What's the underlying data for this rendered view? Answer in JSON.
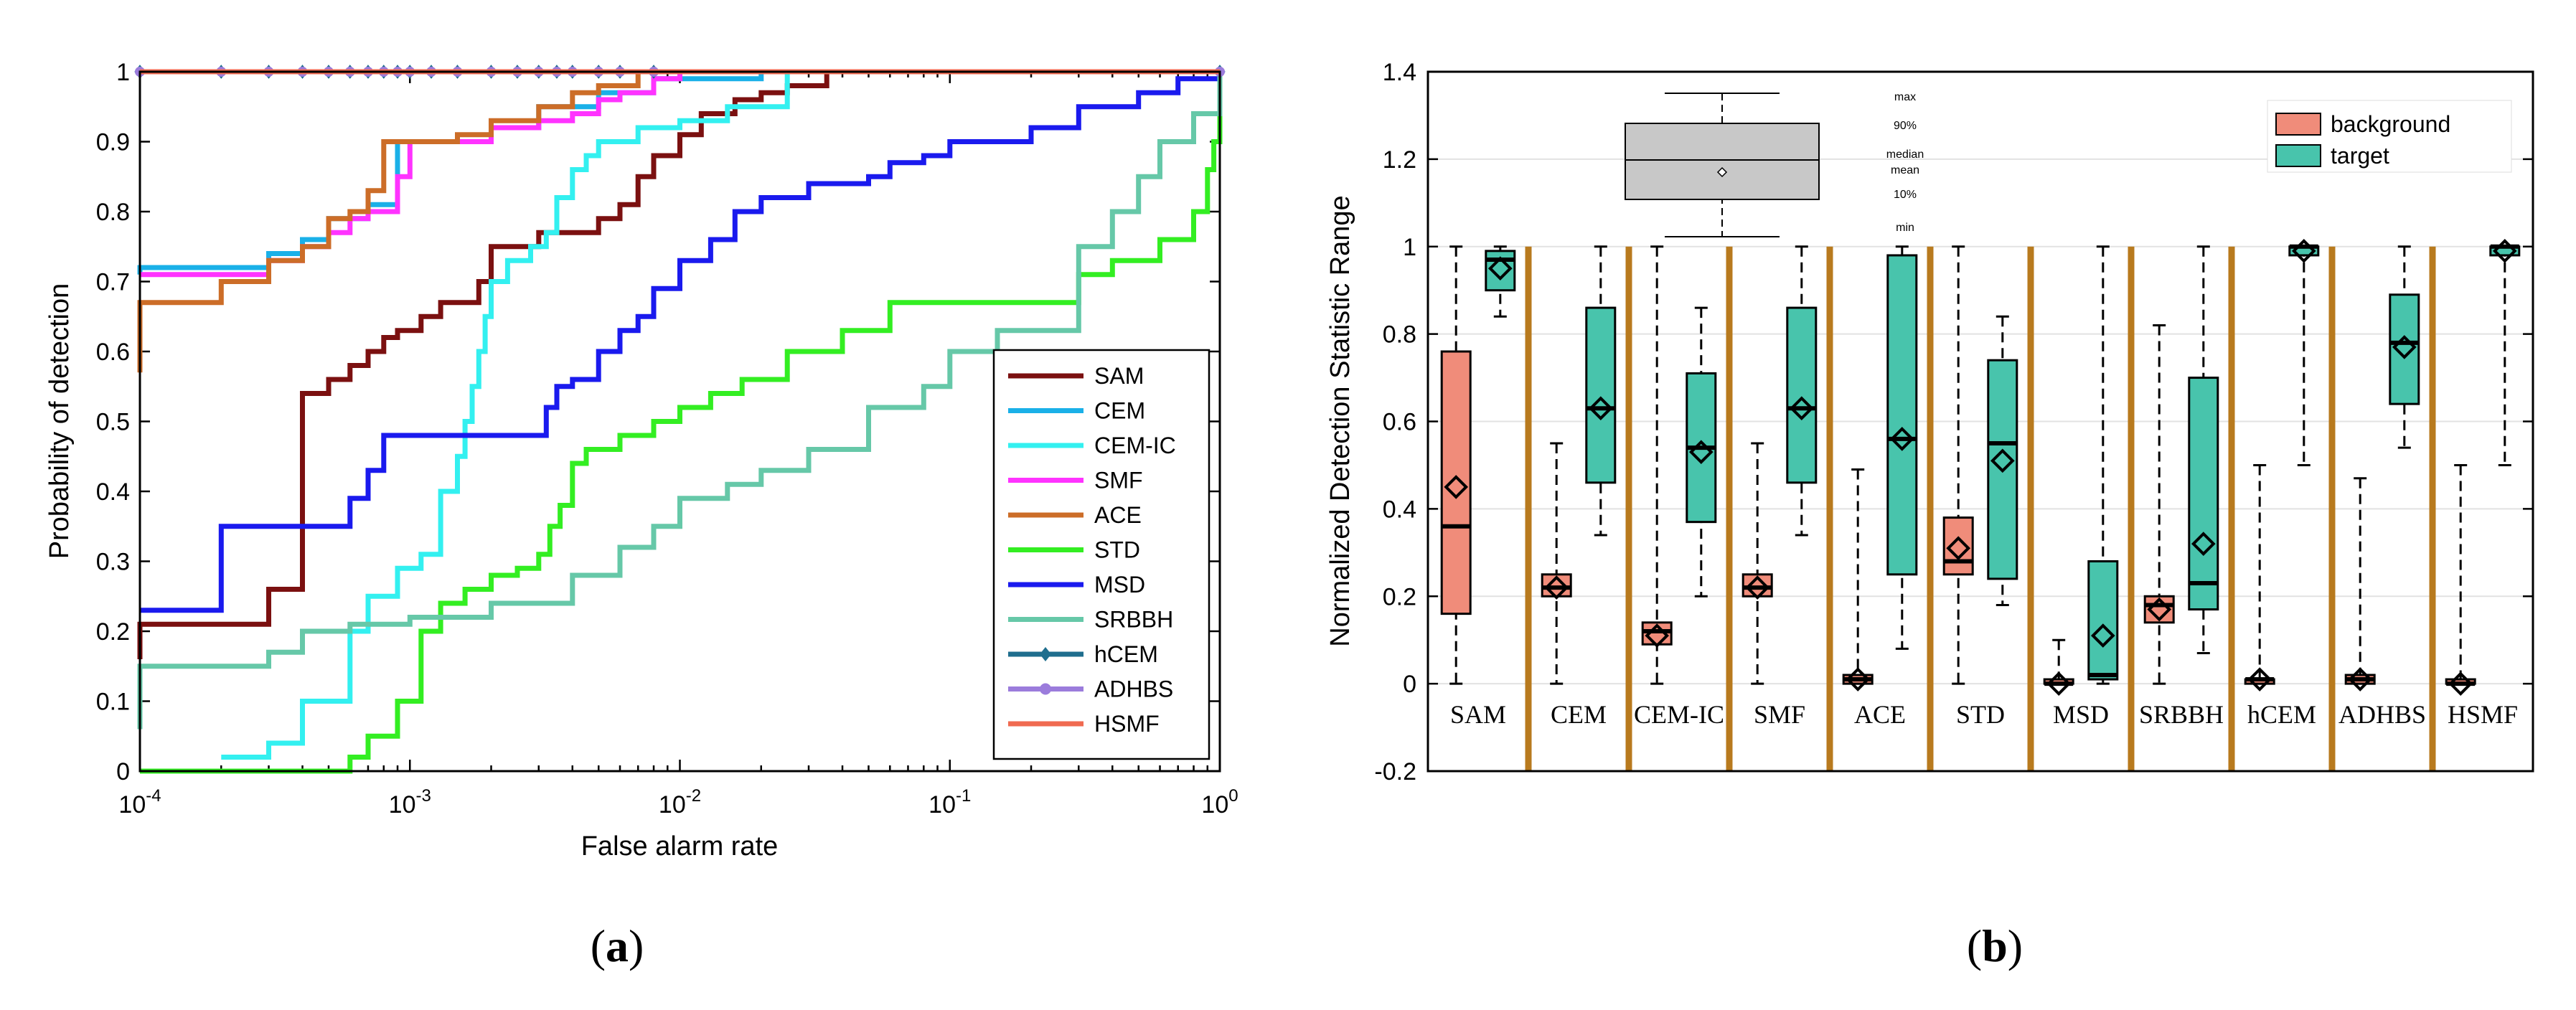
{
  "chart_data": [
    {
      "type": "line",
      "caption": "a",
      "xscale": "log",
      "xlim": [
        0.0001,
        1
      ],
      "ylim": [
        0,
        1
      ],
      "xlabel": "False alarm rate",
      "ylabel": "Probability of detection",
      "x_tick_labels": [
        {
          "base": "10",
          "exp": "-4",
          "value": 0.0001
        },
        {
          "base": "10",
          "exp": "-3",
          "value": 0.001
        },
        {
          "base": "10",
          "exp": "-2",
          "value": 0.01
        },
        {
          "base": "10",
          "exp": "-1",
          "value": 0.1
        },
        {
          "base": "10",
          "exp": "0",
          "value": 1
        }
      ],
      "y_tick_labels": [
        "0",
        "0.1",
        "0.2",
        "0.3",
        "0.4",
        "0.5",
        "0.6",
        "0.7",
        "0.8",
        "0.9",
        "1"
      ],
      "legend_position": "bottom-right",
      "series": [
        {
          "name": "SAM",
          "color": "#7b1010",
          "points": [
            [
              0.0001,
              0.16
            ],
            [
              0.0001,
              0.21
            ],
            [
              0.0003,
              0.26
            ],
            [
              0.0004,
              0.27
            ],
            [
              0.0004,
              0.54
            ],
            [
              0.0005,
              0.56
            ],
            [
              0.0006,
              0.58
            ],
            [
              0.0007,
              0.6
            ],
            [
              0.0008,
              0.62
            ],
            [
              0.0009,
              0.63
            ],
            [
              0.0011,
              0.65
            ],
            [
              0.0013,
              0.67
            ],
            [
              0.0018,
              0.7
            ],
            [
              0.002,
              0.75
            ],
            [
              0.003,
              0.77
            ],
            [
              0.005,
              0.79
            ],
            [
              0.006,
              0.81
            ],
            [
              0.007,
              0.85
            ],
            [
              0.008,
              0.88
            ],
            [
              0.01,
              0.91
            ],
            [
              0.012,
              0.94
            ],
            [
              0.016,
              0.96
            ],
            [
              0.02,
              0.97
            ],
            [
              0.025,
              0.98
            ],
            [
              0.035,
              1.0
            ],
            [
              1,
              1.0
            ]
          ]
        },
        {
          "name": "CEM",
          "color": "#1ab0e8",
          "points": [
            [
              0.0001,
              0.71
            ],
            [
              0.0001,
              0.72
            ],
            [
              0.0003,
              0.74
            ],
            [
              0.0004,
              0.76
            ],
            [
              0.0005,
              0.79
            ],
            [
              0.0007,
              0.81
            ],
            [
              0.0009,
              0.9
            ],
            [
              0.002,
              0.92
            ],
            [
              0.003,
              0.95
            ],
            [
              0.005,
              0.97
            ],
            [
              0.008,
              0.99
            ],
            [
              0.02,
              1.0
            ],
            [
              1,
              1.0
            ]
          ]
        },
        {
          "name": "CEM-IC",
          "color": "#33f0f0",
          "points": [
            [
              0.0002,
              0.02
            ],
            [
              0.0003,
              0.04
            ],
            [
              0.0004,
              0.1
            ],
            [
              0.0005,
              0.1
            ],
            [
              0.0006,
              0.2
            ],
            [
              0.0007,
              0.25
            ],
            [
              0.0009,
              0.29
            ],
            [
              0.0011,
              0.31
            ],
            [
              0.0013,
              0.4
            ],
            [
              0.0015,
              0.45
            ],
            [
              0.0016,
              0.5
            ],
            [
              0.0017,
              0.55
            ],
            [
              0.0018,
              0.6
            ],
            [
              0.0019,
              0.65
            ],
            [
              0.002,
              0.7
            ],
            [
              0.0023,
              0.73
            ],
            [
              0.0028,
              0.75
            ],
            [
              0.0032,
              0.77
            ],
            [
              0.0035,
              0.82
            ],
            [
              0.004,
              0.86
            ],
            [
              0.0045,
              0.88
            ],
            [
              0.005,
              0.9
            ],
            [
              0.007,
              0.92
            ],
            [
              0.01,
              0.93
            ],
            [
              0.015,
              0.95
            ],
            [
              0.025,
              0.97
            ],
            [
              0.025,
              1.0
            ],
            [
              1,
              1.0
            ]
          ]
        },
        {
          "name": "SMF",
          "color": "#ff33ff",
          "points": [
            [
              0.0001,
              0.71
            ],
            [
              0.0003,
              0.73
            ],
            [
              0.0004,
              0.75
            ],
            [
              0.0005,
              0.77
            ],
            [
              0.0006,
              0.79
            ],
            [
              0.0007,
              0.8
            ],
            [
              0.0009,
              0.85
            ],
            [
              0.001,
              0.9
            ],
            [
              0.002,
              0.92
            ],
            [
              0.003,
              0.93
            ],
            [
              0.004,
              0.94
            ],
            [
              0.005,
              0.96
            ],
            [
              0.006,
              0.97
            ],
            [
              0.008,
              0.99
            ],
            [
              0.01,
              1.0
            ],
            [
              1,
              1.0
            ]
          ]
        },
        {
          "name": "ACE",
          "color": "#cc6d28",
          "points": [
            [
              0.0001,
              0.57
            ],
            [
              0.0001,
              0.67
            ],
            [
              0.0002,
              0.7
            ],
            [
              0.0003,
              0.73
            ],
            [
              0.0004,
              0.75
            ],
            [
              0.0005,
              0.79
            ],
            [
              0.0006,
              0.8
            ],
            [
              0.0007,
              0.83
            ],
            [
              0.0008,
              0.9
            ],
            [
              0.0015,
              0.91
            ],
            [
              0.002,
              0.93
            ],
            [
              0.003,
              0.95
            ],
            [
              0.004,
              0.97
            ],
            [
              0.005,
              0.98
            ],
            [
              0.007,
              1.0
            ],
            [
              1,
              1.0
            ]
          ]
        },
        {
          "name": "STD",
          "color": "#33ee22",
          "points": [
            [
              0.0001,
              0.0
            ],
            [
              0.0005,
              0.0
            ],
            [
              0.0006,
              0.02
            ],
            [
              0.0007,
              0.05
            ],
            [
              0.0009,
              0.1
            ],
            [
              0.0011,
              0.2
            ],
            [
              0.0013,
              0.24
            ],
            [
              0.0016,
              0.26
            ],
            [
              0.002,
              0.28
            ],
            [
              0.0025,
              0.29
            ],
            [
              0.003,
              0.31
            ],
            [
              0.0033,
              0.35
            ],
            [
              0.0036,
              0.38
            ],
            [
              0.004,
              0.44
            ],
            [
              0.0045,
              0.46
            ],
            [
              0.006,
              0.48
            ],
            [
              0.008,
              0.5
            ],
            [
              0.01,
              0.52
            ],
            [
              0.013,
              0.54
            ],
            [
              0.017,
              0.56
            ],
            [
              0.025,
              0.6
            ],
            [
              0.04,
              0.63
            ],
            [
              0.06,
              0.67
            ],
            [
              0.3,
              0.71
            ],
            [
              0.4,
              0.73
            ],
            [
              0.6,
              0.76
            ],
            [
              0.8,
              0.8
            ],
            [
              0.9,
              0.86
            ],
            [
              0.95,
              0.9
            ],
            [
              1,
              1.0
            ]
          ]
        },
        {
          "name": "MSD",
          "color": "#1a1aee",
          "points": [
            [
              0.0001,
              0.23
            ],
            [
              0.0002,
              0.23
            ],
            [
              0.0002,
              0.35
            ],
            [
              0.0005,
              0.35
            ],
            [
              0.0006,
              0.39
            ],
            [
              0.0007,
              0.43
            ],
            [
              0.0008,
              0.48
            ],
            [
              0.003,
              0.48
            ],
            [
              0.0032,
              0.52
            ],
            [
              0.0035,
              0.55
            ],
            [
              0.004,
              0.56
            ],
            [
              0.005,
              0.6
            ],
            [
              0.006,
              0.63
            ],
            [
              0.007,
              0.65
            ],
            [
              0.008,
              0.69
            ],
            [
              0.01,
              0.73
            ],
            [
              0.013,
              0.76
            ],
            [
              0.016,
              0.8
            ],
            [
              0.02,
              0.82
            ],
            [
              0.03,
              0.84
            ],
            [
              0.05,
              0.85
            ],
            [
              0.06,
              0.87
            ],
            [
              0.08,
              0.88
            ],
            [
              0.1,
              0.9
            ],
            [
              0.2,
              0.92
            ],
            [
              0.3,
              0.95
            ],
            [
              0.5,
              0.97
            ],
            [
              0.7,
              0.99
            ],
            [
              1,
              1.0
            ]
          ]
        },
        {
          "name": "SRBBH",
          "color": "#66c8a8",
          "points": [
            [
              0.0001,
              0.06
            ],
            [
              0.0001,
              0.15
            ],
            [
              0.0003,
              0.17
            ],
            [
              0.0004,
              0.2
            ],
            [
              0.0006,
              0.21
            ],
            [
              0.001,
              0.22
            ],
            [
              0.002,
              0.24
            ],
            [
              0.004,
              0.28
            ],
            [
              0.006,
              0.32
            ],
            [
              0.008,
              0.35
            ],
            [
              0.01,
              0.39
            ],
            [
              0.015,
              0.41
            ],
            [
              0.02,
              0.43
            ],
            [
              0.03,
              0.46
            ],
            [
              0.05,
              0.52
            ],
            [
              0.08,
              0.55
            ],
            [
              0.1,
              0.6
            ],
            [
              0.15,
              0.63
            ],
            [
              0.2,
              0.63
            ],
            [
              0.3,
              0.75
            ],
            [
              0.4,
              0.8
            ],
            [
              0.5,
              0.85
            ],
            [
              0.6,
              0.9
            ],
            [
              0.8,
              0.94
            ],
            [
              1,
              0.96
            ],
            [
              1,
              1.0
            ]
          ]
        },
        {
          "name": "hCEM",
          "color": "#1f6e8e",
          "points": [
            [
              0.0001,
              1.0
            ],
            [
              1,
              1.0
            ]
          ],
          "marker": "diamond"
        },
        {
          "name": "ADHBS",
          "color": "#9b7cdc",
          "points": [
            [
              0.0001,
              1.0
            ],
            [
              1,
              1.0
            ]
          ],
          "marker": "circle"
        },
        {
          "name": "HSMF",
          "color": "#f06a50",
          "points": [
            [
              0.0001,
              1.0
            ],
            [
              1,
              1.0
            ]
          ]
        }
      ]
    },
    {
      "type": "box",
      "caption": "b",
      "ylabel": "Normalized Detection Statistic Range",
      "ylim": [
        -0.2,
        1.4
      ],
      "y_tick_labels": [
        "-0.2",
        "0",
        "0.2",
        "0.4",
        "0.6",
        "0.8",
        "1",
        "1.2",
        "1.4"
      ],
      "categories": [
        "SAM",
        "CEM",
        "CEM-IC",
        "SMF",
        "ACE",
        "STD",
        "MSD",
        "SRBBH",
        "hCEM",
        "ADHBS",
        "HSMF"
      ],
      "legend": [
        {
          "name": "background",
          "color": "#f08c7a"
        },
        {
          "name": "target",
          "color": "#48c4ac"
        }
      ],
      "key_labels": [
        "max",
        "90%",
        "median",
        "mean",
        "10%",
        "min"
      ],
      "background": [
        {
          "min": 0.0,
          "q10": 0.16,
          "median": 0.36,
          "mean": 0.45,
          "q90": 0.76,
          "max": 1.0
        },
        {
          "min": 0.0,
          "q10": 0.2,
          "median": 0.22,
          "mean": 0.22,
          "q90": 0.25,
          "max": 0.55
        },
        {
          "min": 0.0,
          "q10": 0.09,
          "median": 0.12,
          "mean": 0.11,
          "q90": 0.14,
          "max": 1.0
        },
        {
          "min": 0.0,
          "q10": 0.2,
          "median": 0.22,
          "mean": 0.22,
          "q90": 0.25,
          "max": 0.55
        },
        {
          "min": 0.0,
          "q10": 0.0,
          "median": 0.01,
          "mean": 0.01,
          "q90": 0.02,
          "max": 0.49
        },
        {
          "min": 0.0,
          "q10": 0.25,
          "median": 0.28,
          "mean": 0.31,
          "q90": 0.38,
          "max": 1.0
        },
        {
          "min": 0.0,
          "q10": 0.0,
          "median": 0.0,
          "mean": 0.0,
          "q90": 0.01,
          "max": 0.1
        },
        {
          "min": 0.0,
          "q10": 0.14,
          "median": 0.18,
          "mean": 0.17,
          "q90": 0.2,
          "max": 0.82
        },
        {
          "min": 0.0,
          "q10": 0.0,
          "median": 0.01,
          "mean": 0.01,
          "q90": 0.01,
          "max": 0.5
        },
        {
          "min": 0.0,
          "q10": 0.0,
          "median": 0.01,
          "mean": 0.01,
          "q90": 0.02,
          "max": 0.47
        },
        {
          "min": 0.0,
          "q10": 0.0,
          "median": 0.0,
          "mean": 0.0,
          "q90": 0.01,
          "max": 0.5
        }
      ],
      "target": [
        {
          "min": 0.84,
          "q10": 0.9,
          "median": 0.97,
          "mean": 0.95,
          "q90": 0.99,
          "max": 1.0
        },
        {
          "min": 0.34,
          "q10": 0.46,
          "median": 0.63,
          "mean": 0.63,
          "q90": 0.86,
          "max": 1.0
        },
        {
          "min": 0.2,
          "q10": 0.37,
          "median": 0.54,
          "mean": 0.53,
          "q90": 0.71,
          "max": 0.86
        },
        {
          "min": 0.34,
          "q10": 0.46,
          "median": 0.63,
          "mean": 0.63,
          "q90": 0.86,
          "max": 1.0
        },
        {
          "min": 0.08,
          "q10": 0.25,
          "median": 0.56,
          "mean": 0.56,
          "q90": 0.98,
          "max": 1.0
        },
        {
          "min": 0.18,
          "q10": 0.24,
          "median": 0.55,
          "mean": 0.51,
          "q90": 0.74,
          "max": 0.84
        },
        {
          "min": 0.0,
          "q10": 0.01,
          "median": 0.02,
          "mean": 0.11,
          "q90": 0.28,
          "max": 1.0
        },
        {
          "min": 0.07,
          "q10": 0.17,
          "median": 0.23,
          "mean": 0.32,
          "q90": 0.7,
          "max": 1.0
        },
        {
          "min": 0.5,
          "q10": 0.98,
          "median": 1.0,
          "mean": 0.99,
          "q90": 1.0,
          "max": 1.0
        },
        {
          "min": 0.54,
          "q10": 0.64,
          "median": 0.78,
          "mean": 0.77,
          "q90": 0.89,
          "max": 1.0
        },
        {
          "min": 0.5,
          "q10": 0.98,
          "median": 1.0,
          "mean": 0.99,
          "q90": 1.0,
          "max": 1.0
        }
      ]
    }
  ]
}
